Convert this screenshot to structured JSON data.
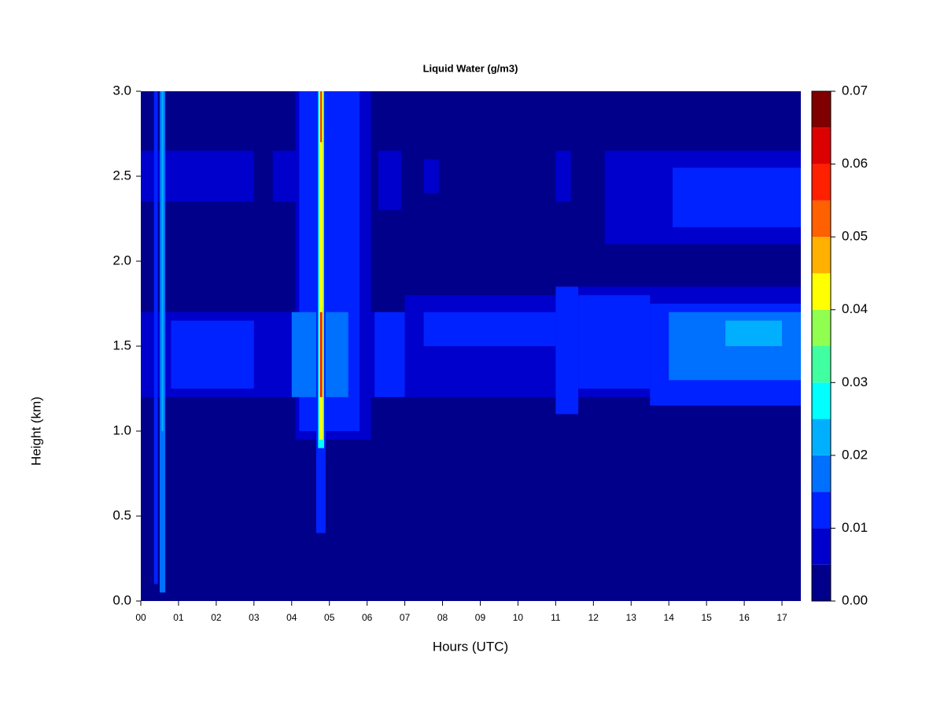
{
  "chart_data": {
    "type": "heatmap",
    "title": "Liquid Water (g/m3)",
    "x_label": "Hours (UTC)",
    "y_label": "Height (km)",
    "xlim": [
      0,
      17.5
    ],
    "ylim": [
      0,
      3
    ],
    "xticks": [
      {
        "value": 0,
        "label": "00"
      },
      {
        "value": 1,
        "label": "01"
      },
      {
        "value": 2,
        "label": "02"
      },
      {
        "value": 3,
        "label": "03"
      },
      {
        "value": 4,
        "label": "04"
      },
      {
        "value": 5,
        "label": "05"
      },
      {
        "value": 6,
        "label": "06"
      },
      {
        "value": 7,
        "label": "07"
      },
      {
        "value": 8,
        "label": "08"
      },
      {
        "value": 9,
        "label": "09"
      },
      {
        "value": 10,
        "label": "10"
      },
      {
        "value": 11,
        "label": "11"
      },
      {
        "value": 12,
        "label": "12"
      },
      {
        "value": 13,
        "label": "13"
      },
      {
        "value": 14,
        "label": "14"
      },
      {
        "value": 15,
        "label": "15"
      },
      {
        "value": 16,
        "label": "16"
      },
      {
        "value": 17,
        "label": "17"
      }
    ],
    "yticks": [
      {
        "value": 0,
        "label": "0.0"
      },
      {
        "value": 0.5,
        "label": "0.5"
      },
      {
        "value": 1,
        "label": "1.0"
      },
      1.5,
      {
        "value": 2,
        "label": "2.0"
      },
      2.5,
      {
        "value": 3,
        "label": "3.0"
      }
    ],
    "levels": [
      0,
      0.005,
      0.01,
      0.015,
      0.02,
      0.025,
      0.03,
      0.035,
      0.04,
      0.045,
      0.05,
      0.055,
      0.06,
      0.065,
      0.07
    ],
    "colors": [
      "#00008b",
      "#0000cd",
      "#0022ff",
      "#0070ff",
      "#00b0ff",
      "#00ffff",
      "#40ffa0",
      "#90ff50",
      "#ffff00",
      "#ffb000",
      "#ff6000",
      "#ff2000",
      "#dd0000",
      "#800000"
    ],
    "colorbar_ticks": [
      {
        "value": 0,
        "label": "0.00"
      },
      {
        "value": 0.01,
        "label": "0.01"
      },
      {
        "value": 0.02,
        "label": "0.02"
      },
      {
        "value": 0.03,
        "label": "0.03"
      },
      {
        "value": 0.04,
        "label": "0.04"
      },
      {
        "value": 0.05,
        "label": "0.05"
      },
      {
        "value": 0.06,
        "label": "0.06"
      },
      {
        "value": 0.07,
        "label": "0.07"
      }
    ],
    "cells": [
      {
        "x": [
          0,
          17.5
        ],
        "y": [
          0,
          3
        ],
        "value": 0.0025
      },
      {
        "x": [
          0,
          3.0
        ],
        "y": [
          2.35,
          2.65
        ],
        "value": 0.0075
      },
      {
        "x": [
          3.5,
          6.0
        ],
        "y": [
          2.35,
          2.65
        ],
        "value": 0.0075
      },
      {
        "x": [
          6.3,
          6.9
        ],
        "y": [
          2.3,
          2.65
        ],
        "value": 0.0075
      },
      {
        "x": [
          7.5,
          7.9
        ],
        "y": [
          2.4,
          2.6
        ],
        "value": 0.0075
      },
      {
        "x": [
          11.0,
          11.4
        ],
        "y": [
          2.35,
          2.65
        ],
        "value": 0.0075
      },
      {
        "x": [
          12.3,
          17.5
        ],
        "y": [
          2.1,
          2.65
        ],
        "value": 0.0075
      },
      {
        "x": [
          14.1,
          17.5
        ],
        "y": [
          2.2,
          2.55
        ],
        "value": 0.0125
      },
      {
        "x": [
          0,
          7.0
        ],
        "y": [
          1.2,
          1.7
        ],
        "value": 0.0075
      },
      {
        "x": [
          0.8,
          3.0
        ],
        "y": [
          1.25,
          1.65
        ],
        "value": 0.0125
      },
      {
        "x": [
          4.1,
          6.1
        ],
        "y": [
          0.95,
          3.0
        ],
        "value": 0.0075
      },
      {
        "x": [
          4.2,
          5.8
        ],
        "y": [
          1.0,
          3.0
        ],
        "value": 0.0125
      },
      {
        "x": [
          4.0,
          5.5
        ],
        "y": [
          1.2,
          1.7
        ],
        "value": 0.0175
      },
      {
        "x": [
          6.2,
          7.0
        ],
        "y": [
          1.2,
          1.7
        ],
        "value": 0.0125
      },
      {
        "x": [
          7.0,
          11.0
        ],
        "y": [
          1.2,
          1.8
        ],
        "value": 0.0075
      },
      {
        "x": [
          7.5,
          11.0
        ],
        "y": [
          1.5,
          1.7
        ],
        "value": 0.0125
      },
      {
        "x": [
          11.0,
          11.6
        ],
        "y": [
          1.1,
          1.85
        ],
        "value": 0.0125
      },
      {
        "x": [
          11.6,
          17.5
        ],
        "y": [
          1.2,
          1.85
        ],
        "value": 0.0075
      },
      {
        "x": [
          11.6,
          13.5
        ],
        "y": [
          1.25,
          1.8
        ],
        "value": 0.0125
      },
      {
        "x": [
          13.5,
          17.5
        ],
        "y": [
          1.15,
          1.75
        ],
        "value": 0.0125
      },
      {
        "x": [
          14.0,
          17.5
        ],
        "y": [
          1.3,
          1.7
        ],
        "value": 0.0175
      },
      {
        "x": [
          15.5,
          17.0
        ],
        "y": [
          1.5,
          1.65
        ],
        "value": 0.0225
      },
      {
        "x": [
          0.35,
          0.45
        ],
        "y": [
          0.1,
          3.0
        ],
        "value": 0.0125
      },
      {
        "x": [
          0.5,
          0.65
        ],
        "y": [
          0.05,
          3.0
        ],
        "value": 0.0175
      },
      {
        "x": [
          0.55,
          0.6
        ],
        "y": [
          1.0,
          3.0
        ],
        "value": 0.0225
      },
      {
        "x": [
          4.65,
          4.9
        ],
        "y": [
          0.4,
          3.0
        ],
        "value": 0.0125
      },
      {
        "x": [
          4.7,
          4.86
        ],
        "y": [
          0.9,
          3.0
        ],
        "value": 0.0275
      },
      {
        "x": [
          4.73,
          4.83
        ],
        "y": [
          0.95,
          3.0
        ],
        "value": 0.0425
      },
      {
        "x": [
          4.75,
          4.81
        ],
        "y": [
          1.2,
          1.7
        ],
        "value": 0.0575
      },
      {
        "x": [
          4.76,
          4.8
        ],
        "y": [
          2.7,
          3.0
        ],
        "value": 0.0575
      }
    ]
  }
}
